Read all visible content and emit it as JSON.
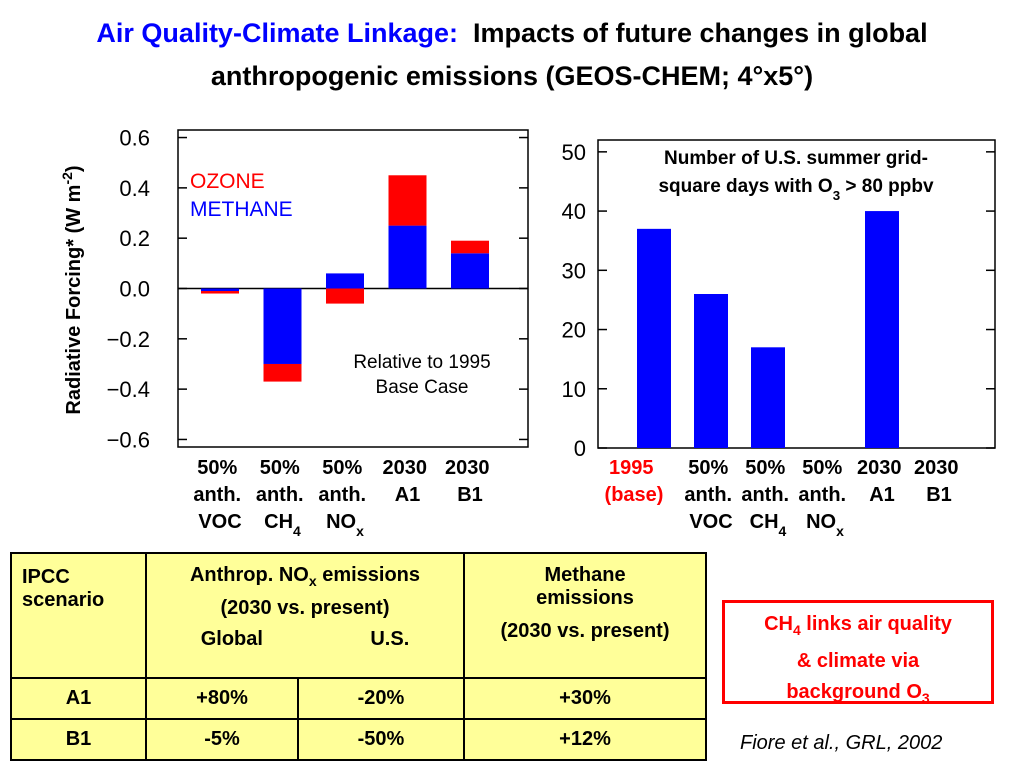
{
  "title": {
    "highlight": "Air Quality-Climate Linkage:",
    "text": "Impacts of future changes in global anthropogenic emissions (GEOS-CHEM; 4°x5°)"
  },
  "chart_data": [
    {
      "type": "bar",
      "stacked": true,
      "y_label": "Radiative Forcing* (W m-2)",
      "categories": [
        "50% anth. VOC",
        "50% anth. CH4",
        "50% anth. NOx",
        "2030 A1",
        "2030 B1"
      ],
      "series": [
        {
          "name": "OZONE",
          "color": "#ff0000",
          "values": [
            -0.01,
            -0.07,
            -0.06,
            0.2,
            0.05
          ]
        },
        {
          "name": "METHANE",
          "color": "#0000ff",
          "values": [
            -0.01,
            -0.3,
            0.06,
            0.25,
            0.14
          ]
        }
      ],
      "ylim": [
        -0.63,
        0.63
      ],
      "yticks": [
        0.6,
        0.4,
        0.2,
        {
          "value": 0,
          "label": "0.0"
        },
        {
          "value": -0.2,
          "label": "−0.2"
        },
        {
          "value": -0.4,
          "label": "−0.4"
        },
        {
          "value": -0.6,
          "label": "−0.6"
        }
      ],
      "annotation": [
        "Relative to 1995",
        "Base Case"
      ]
    },
    {
      "type": "bar",
      "title": [
        "Number of U.S. summer grid-",
        "square days with O3 > 80 ppbv"
      ],
      "categories": [
        "1995 (base)",
        "50% anth. VOC",
        "50% anth. CH4",
        "50% anth. NOx",
        "2030 A1",
        "2030 B1"
      ],
      "category_colors": [
        "#ff0000",
        "#000000",
        "#000000",
        "#000000",
        "#000000",
        "#000000"
      ],
      "values": [
        37,
        26,
        17,
        0,
        40,
        0
      ],
      "color": "#0000ff",
      "ylim": [
        0,
        52
      ],
      "yticks": [
        0,
        10,
        20,
        30,
        40,
        50
      ]
    }
  ],
  "table": {
    "header": {
      "scenario": "IPCC scenario",
      "nox": "Anthrop. NOx emissions",
      "nox_period": "(2030 vs. present)",
      "global": "Global",
      "us": "U.S.",
      "methane": "Methane emissions",
      "methane_period": "(2030 vs. present)"
    },
    "rows": [
      [
        "A1",
        "+80%",
        "-20%",
        "+30%"
      ],
      [
        "B1",
        "-5%",
        "-50%",
        "+12%"
      ]
    ]
  },
  "callout": [
    "CH4 links air quality",
    "& climate via",
    "background O3"
  ],
  "citation": "Fiore et al., GRL, 2002"
}
